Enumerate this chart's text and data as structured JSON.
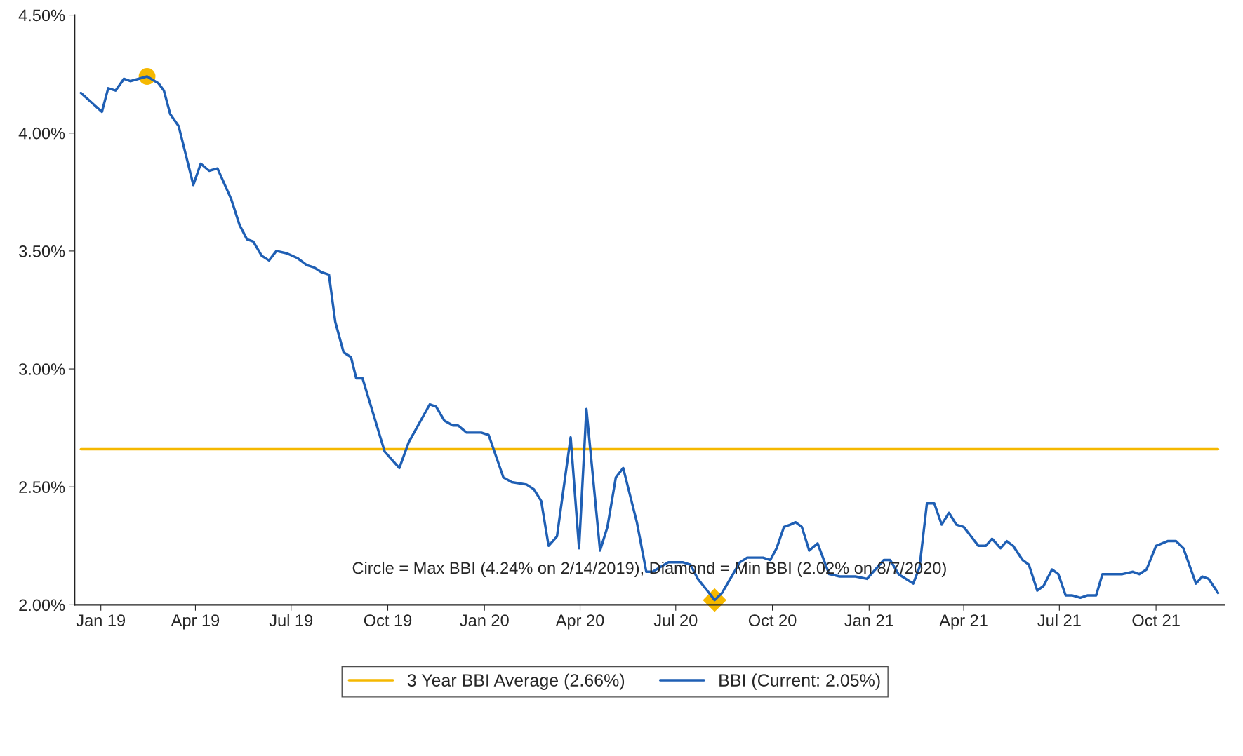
{
  "chart_data": {
    "type": "line",
    "annotations": [
      "Circle = Max BBI (4.24% on 2/14/2019), Diamond = Min BBI (2.02% on 8/7/2020)"
    ],
    "xlim": [
      "2018-12-07",
      "2021-12-05"
    ],
    "xticks": [
      {
        "value": "2019-01-01",
        "label": "Jan 19"
      },
      {
        "value": "2019-04-01",
        "label": "Apr 19"
      },
      {
        "value": "2019-07-01",
        "label": "Jul 19"
      },
      {
        "value": "2019-10-01",
        "label": "Oct 19"
      },
      {
        "value": "2020-01-01",
        "label": "Jan 20"
      },
      {
        "value": "2020-04-01",
        "label": "Apr 20"
      },
      {
        "value": "2020-07-01",
        "label": "Jul 20"
      },
      {
        "value": "2020-10-01",
        "label": "Oct 20"
      },
      {
        "value": "2021-01-01",
        "label": "Jan 21"
      },
      {
        "value": "2021-04-01",
        "label": "Apr 21"
      },
      {
        "value": "2021-07-01",
        "label": "Jul 21"
      },
      {
        "value": "2021-10-01",
        "label": "Oct 21"
      }
    ],
    "ylim": [
      2.0,
      4.5
    ],
    "yticks": [
      {
        "value": 2.0,
        "label": "2.00%"
      },
      {
        "value": 2.5,
        "label": "2.50%"
      },
      {
        "value": 3.0,
        "label": "3.00%"
      },
      {
        "value": 3.5,
        "label": "3.50%"
      },
      {
        "value": 4.0,
        "label": "4.00%"
      },
      {
        "value": 4.5,
        "label": "4.50%"
      }
    ],
    "grid": false,
    "legend": "bottom",
    "marker": "none",
    "line_style": "solid",
    "series": [
      {
        "name": "3 Year BBI Average (2.66%)",
        "color": "#f5b800",
        "x": [
          "2018-12-13",
          "2021-11-29"
        ],
        "values": [
          2.66,
          2.66
        ]
      },
      {
        "name": "BBI (Current: 2.05%)",
        "color": "#1f5fb4",
        "x": [
          "2018-12-13",
          "2019-01-02",
          "2019-01-08",
          "2019-01-15",
          "2019-01-23",
          "2019-01-29",
          "2019-02-14",
          "2019-02-25",
          "2019-03-02",
          "2019-03-08",
          "2019-03-16",
          "2019-03-30",
          "2019-04-06",
          "2019-04-14",
          "2019-04-22",
          "2019-05-05",
          "2019-05-13",
          "2019-05-20",
          "2019-05-26",
          "2019-06-03",
          "2019-06-10",
          "2019-06-17",
          "2019-06-27",
          "2019-07-07",
          "2019-07-16",
          "2019-07-23",
          "2019-07-30",
          "2019-08-06",
          "2019-08-12",
          "2019-08-20",
          "2019-08-27",
          "2019-09-01",
          "2019-09-07",
          "2019-09-28",
          "2019-10-12",
          "2019-10-21",
          "2019-11-10",
          "2019-11-16",
          "2019-11-24",
          "2019-12-02",
          "2019-12-07",
          "2019-12-15",
          "2019-12-29",
          "2020-01-05",
          "2020-01-19",
          "2020-01-27",
          "2020-02-10",
          "2020-02-17",
          "2020-02-24",
          "2020-03-02",
          "2020-03-10",
          "2020-03-23",
          "2020-03-31",
          "2020-04-07",
          "2020-04-20",
          "2020-04-27",
          "2020-05-05",
          "2020-05-12",
          "2020-05-25",
          "2020-06-03",
          "2020-06-09",
          "2020-06-24",
          "2020-07-08",
          "2020-07-15",
          "2020-07-22",
          "2020-07-31",
          "2020-08-07",
          "2020-08-14",
          "2020-08-31",
          "2020-09-07",
          "2020-09-22",
          "2020-09-29",
          "2020-10-05",
          "2020-10-12",
          "2020-10-18",
          "2020-10-23",
          "2020-10-29",
          "2020-11-05",
          "2020-11-13",
          "2020-11-24",
          "2020-12-04",
          "2020-12-19",
          "2020-12-30",
          "2021-01-15",
          "2021-01-21",
          "2021-01-29",
          "2021-02-12",
          "2021-02-18",
          "2021-02-25",
          "2021-03-04",
          "2021-03-11",
          "2021-03-18",
          "2021-03-25",
          "2021-04-01",
          "2021-04-15",
          "2021-04-22",
          "2021-04-28",
          "2021-05-06",
          "2021-05-12",
          "2021-05-18",
          "2021-05-27",
          "2021-06-02",
          "2021-06-10",
          "2021-06-16",
          "2021-06-24",
          "2021-06-30",
          "2021-07-07",
          "2021-07-13",
          "2021-07-21",
          "2021-07-28",
          "2021-08-05",
          "2021-08-11",
          "2021-08-30",
          "2021-09-09",
          "2021-09-15",
          "2021-09-22",
          "2021-10-01",
          "2021-10-12",
          "2021-10-20",
          "2021-10-27",
          "2021-11-08",
          "2021-11-14",
          "2021-11-20",
          "2021-11-29"
        ],
        "values": [
          4.17,
          4.09,
          4.19,
          4.18,
          4.23,
          4.22,
          4.24,
          4.21,
          4.18,
          4.08,
          4.03,
          3.78,
          3.87,
          3.84,
          3.85,
          3.72,
          3.61,
          3.55,
          3.54,
          3.48,
          3.46,
          3.5,
          3.49,
          3.47,
          3.44,
          3.43,
          3.41,
          3.4,
          3.2,
          3.07,
          3.05,
          2.96,
          2.96,
          2.65,
          2.58,
          2.69,
          2.85,
          2.84,
          2.78,
          2.76,
          2.76,
          2.73,
          2.73,
          2.72,
          2.54,
          2.52,
          2.51,
          2.49,
          2.44,
          2.25,
          2.29,
          2.71,
          2.24,
          2.83,
          2.23,
          2.33,
          2.54,
          2.58,
          2.35,
          2.14,
          2.14,
          2.18,
          2.18,
          2.17,
          2.11,
          2.06,
          2.02,
          2.05,
          2.18,
          2.2,
          2.2,
          2.19,
          2.24,
          2.33,
          2.34,
          2.35,
          2.33,
          2.23,
          2.26,
          2.13,
          2.12,
          2.12,
          2.11,
          2.19,
          2.19,
          2.13,
          2.09,
          2.16,
          2.43,
          2.43,
          2.34,
          2.39,
          2.34,
          2.33,
          2.25,
          2.25,
          2.28,
          2.24,
          2.27,
          2.25,
          2.19,
          2.17,
          2.06,
          2.08,
          2.15,
          2.13,
          2.04,
          2.04,
          2.03,
          2.04,
          2.04,
          2.13,
          2.13,
          2.14,
          2.13,
          2.15,
          2.25,
          2.27,
          2.27,
          2.24,
          2.09,
          2.12,
          2.11,
          2.05
        ]
      },
      {
        "type": "scatter",
        "marker": "circle",
        "color": "#f5b800",
        "x": [
          "2019-02-14"
        ],
        "values": [
          4.24
        ]
      },
      {
        "type": "scatter",
        "marker": "diamond",
        "color": "#f5b800",
        "x": [
          "2020-08-07"
        ],
        "values": [
          2.02
        ]
      }
    ]
  }
}
